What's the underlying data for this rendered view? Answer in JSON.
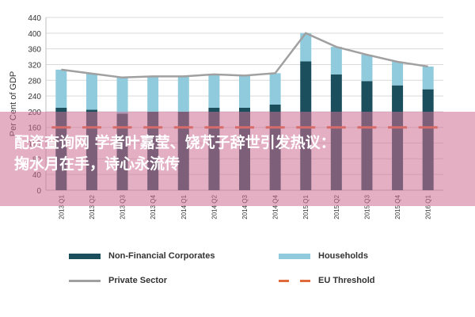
{
  "chart_data": {
    "type": "bar",
    "title": "",
    "ylabel": "Per Cent of GDP",
    "ylim": [
      0,
      440
    ],
    "yticks": [
      0,
      40,
      80,
      120,
      160,
      200,
      240,
      280,
      320,
      360,
      400,
      440
    ],
    "categories": [
      "2013 Q1",
      "2013 Q2",
      "2013 Q3",
      "2013 Q4",
      "2014 Q1",
      "2014 Q2",
      "2014 Q3",
      "2014 Q4",
      "2015 Q1",
      "2015 Q2",
      "2015 Q3",
      "2015 Q4",
      "2016 Q1"
    ],
    "series": [
      {
        "name": "Non-Financial Corporates",
        "kind": "bar-stack",
        "color": "#1b4f5e",
        "values": [
          210,
          205,
          195,
          200,
          200,
          210,
          210,
          218,
          328,
          295,
          278,
          267,
          257
        ]
      },
      {
        "name": "Households",
        "kind": "bar-stack",
        "color": "#8fcbdc",
        "values": [
          97,
          92,
          92,
          90,
          90,
          85,
          82,
          80,
          72,
          70,
          67,
          60,
          58
        ]
      },
      {
        "name": "Private Sector",
        "kind": "line",
        "color": "#a0a0a0",
        "values": [
          307,
          297,
          287,
          290,
          290,
          295,
          292,
          298,
          400,
          365,
          345,
          327,
          315
        ]
      },
      {
        "name": "EU Threshold",
        "kind": "dashed-line",
        "color": "#e06a3a",
        "values": [
          160,
          160,
          160,
          160,
          160,
          160,
          160,
          160,
          160,
          160,
          160,
          160,
          160
        ]
      }
    ],
    "grid": true,
    "legend_position": "bottom"
  },
  "legend": {
    "items": [
      {
        "label": "Non-Financial Corporates",
        "color": "#1b4f5e"
      },
      {
        "label": "Households",
        "color": "#8fcbdc"
      },
      {
        "label": "Private Sector",
        "color": "#a0a0a0"
      },
      {
        "label": "EU Threshold",
        "color": "#e06a3a"
      }
    ]
  },
  "watermark": {
    "line1": "配资查询网 学者叶嘉莹、饶芃子辞世引发热议：",
    "line2": "掬水月在手，诗心永流传"
  }
}
